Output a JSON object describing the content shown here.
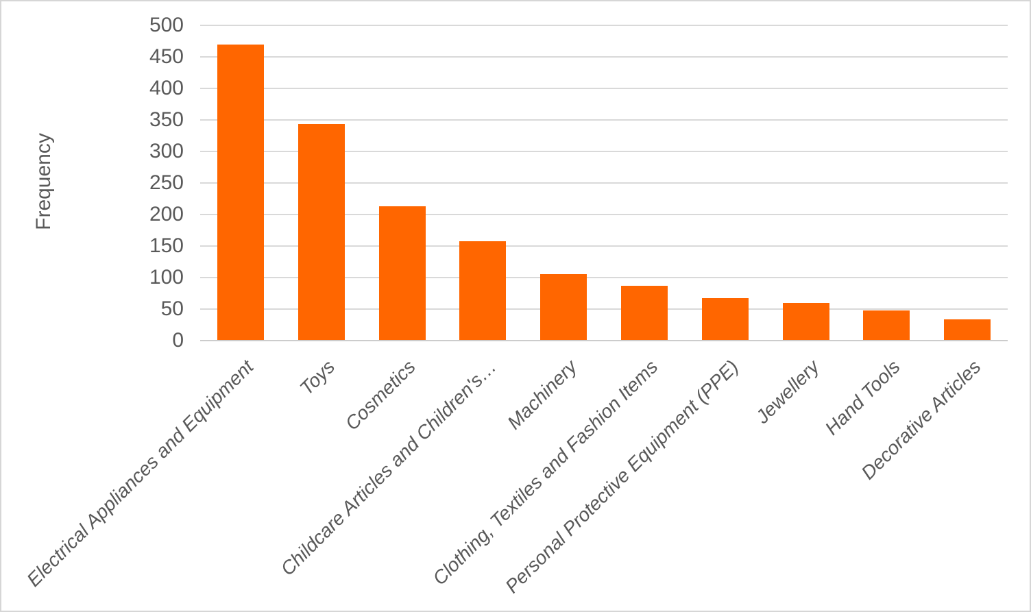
{
  "chart_data": {
    "type": "bar",
    "title": "",
    "ylabel": "Frequency",
    "xlabel": "",
    "ylim": [
      0,
      500
    ],
    "ytick_step": 50,
    "grid": "horizontal",
    "legend_position": "none",
    "categories": [
      "Electrical Appliances and Equipment",
      "Toys",
      "Cosmetics",
      "Childcare Articles and Children's…",
      "Machinery",
      "Clothing, Textiles and Fashion Items",
      "Personal Protective Equipment (PPE)",
      "Jewellery",
      "Hand Tools",
      "Decorative Articles"
    ],
    "values": [
      470,
      343,
      213,
      158,
      105,
      87,
      67,
      60,
      48,
      34
    ],
    "colors": {
      "bar": "#FF6600",
      "gridline": "#D9D9D9",
      "axis_line": "#CCCCCC",
      "text": "#595959",
      "frame_border": "#D6D6D6",
      "background": "#FFFFFF"
    }
  }
}
